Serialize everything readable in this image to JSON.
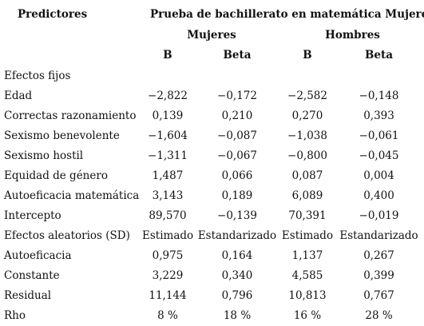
{
  "header": {
    "predictors": "Predictores",
    "main_title": "Prueba de bachillerato en matemática Mujeres",
    "groups": [
      "Mujeres",
      "Hombres"
    ],
    "columns": [
      "B",
      "Beta",
      "B",
      "Beta"
    ]
  },
  "rows": [
    {
      "label": "Efectos fijos",
      "values": [
        "",
        "",
        "",
        ""
      ]
    },
    {
      "label": "Edad",
      "values": [
        "−2,822",
        "−0,172",
        "−2,582",
        "−0,148"
      ]
    },
    {
      "label": "Correctas razonamiento",
      "values": [
        "0,139",
        "0,210",
        "0,270",
        "0,393"
      ]
    },
    {
      "label": "Sexismo benevolente",
      "values": [
        "−1,604",
        "−0,087",
        "−1,038",
        "−0,061"
      ]
    },
    {
      "label": "Sexismo hostil",
      "values": [
        "−1,311",
        "−0,067",
        "−0,800",
        "−0,045"
      ]
    },
    {
      "label": "Equidad de género",
      "values": [
        "1,487",
        "0,066",
        "0,087",
        "0,004"
      ]
    },
    {
      "label": "Autoeficacia matemática",
      "values": [
        "3,143",
        "0,189",
        "6,089",
        "0,400"
      ]
    },
    {
      "label": "Intercepto",
      "values": [
        "89,570",
        "−0,139",
        "70,391",
        "−0,019"
      ]
    },
    {
      "label": "Efectos aleatorios (SD)",
      "values": [
        "Estimado",
        "Estandarizado",
        "Estimado",
        "Estandarizado"
      ]
    },
    {
      "label": "Autoeficacia",
      "values": [
        "0,975",
        "0,164",
        "1,137",
        "0,267"
      ]
    },
    {
      "label": "Constante",
      "values": [
        "3,229",
        "0,340",
        "4,585",
        "0,399"
      ]
    },
    {
      "label": "Residual",
      "values": [
        "11,144",
        "0,796",
        "10,813",
        "0,767"
      ]
    },
    {
      "label": "Rho",
      "values": [
        "8 %",
        "18 %",
        "16 %",
        "28 %"
      ]
    }
  ]
}
